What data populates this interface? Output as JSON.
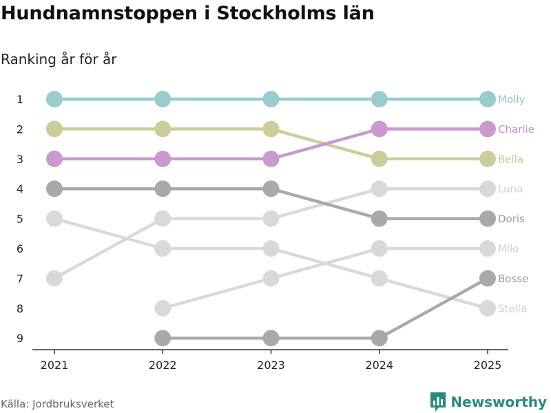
{
  "title": "Hundnamnstoppen i Stockholms län",
  "subtitle": "Ranking år för år",
  "source": "Källa: Jordbruksverket",
  "brand": {
    "name": "Newsworthy",
    "icon": "newsworthy-logo-icon",
    "color": "#2a8a7e"
  },
  "chart_data": {
    "type": "line",
    "subtype": "bump",
    "title": "Hundnamnstoppen i Stockholms län",
    "subtitle": "Ranking år för år",
    "x": [
      "2021",
      "2022",
      "2023",
      "2024",
      "2025"
    ],
    "y_ticks": [
      "1",
      "2",
      "3",
      "4",
      "5",
      "6",
      "7",
      "8",
      "9"
    ],
    "ylim": [
      1,
      9
    ],
    "y_inverted": true,
    "xlabel": "",
    "ylabel": "",
    "grid": false,
    "legend": "right-end labels",
    "series": [
      {
        "name": "Stella",
        "color": "#d9d9d9",
        "label_color": "#d0d0d0",
        "values": [
          5,
          6,
          6,
          7,
          8
        ]
      },
      {
        "name": "Milo",
        "color": "#d9d9d9",
        "label_color": "#d0d0d0",
        "values": [
          null,
          8,
          7,
          6,
          6
        ]
      },
      {
        "name": "Luna",
        "color": "#d9d9d9",
        "label_color": "#d0d0d0",
        "values": [
          7,
          5,
          5,
          4,
          4
        ]
      },
      {
        "name": "Bosse",
        "color": "#a9a9a9",
        "label_color": "#9a9a9a",
        "values": [
          null,
          9,
          9,
          9,
          7
        ]
      },
      {
        "name": "Doris",
        "color": "#a9a9a9",
        "label_color": "#9a9a9a",
        "values": [
          4,
          4,
          4,
          5,
          5
        ]
      },
      {
        "name": "Bella",
        "color": "#cdcd9b",
        "label_color": "#c6c68e",
        "values": [
          2,
          2,
          2,
          3,
          3
        ]
      },
      {
        "name": "Charlie",
        "color": "#c999cf",
        "label_color": "#c48fcb",
        "values": [
          3,
          3,
          3,
          2,
          2
        ]
      },
      {
        "name": "Molly",
        "color": "#99cccc",
        "label_color": "#8ec6c6",
        "values": [
          1,
          1,
          1,
          1,
          1
        ]
      }
    ]
  }
}
